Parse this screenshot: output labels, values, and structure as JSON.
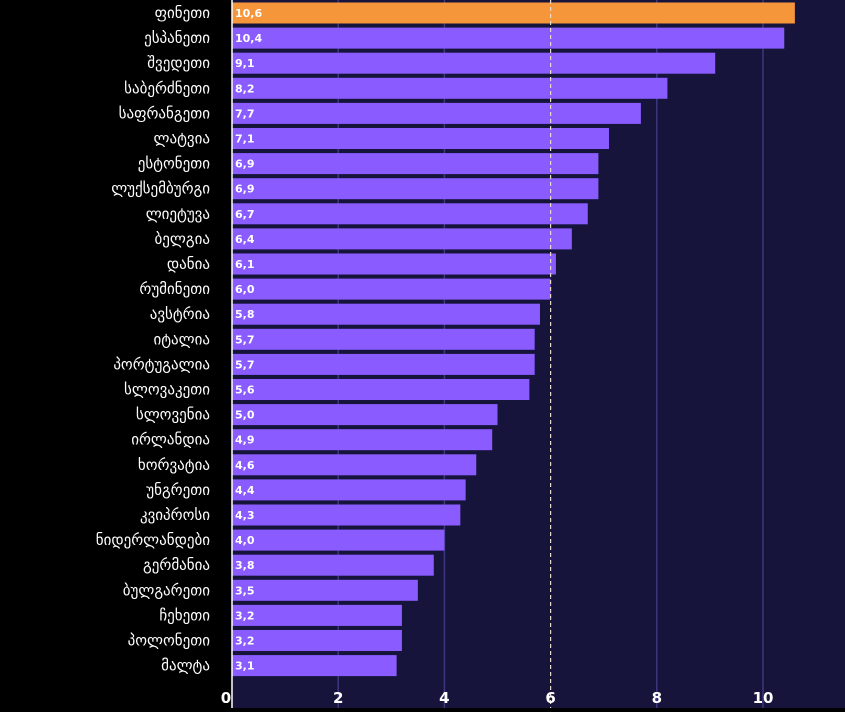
{
  "chart_data": {
    "type": "bar",
    "orientation": "horizontal",
    "categories": [
      "ფინეთი",
      "ესპანეთი",
      "შვედეთი",
      "საბერძნეთი",
      "საფრანგეთი",
      "ლატვია",
      "ესტონეთი",
      "ლუქსემბურგი",
      "ლიეტუვა",
      "ბელგია",
      "დანია",
      "რუმინეთი",
      "ავსტრია",
      "იტალია",
      "პორტუგალია",
      "სლოვაკეთი",
      "სლოვენია",
      "ირლანდია",
      "ხორვატია",
      "უნგრეთი",
      "კვიპროსი",
      "ნიდერლანდები",
      "გერმანია",
      "ბულგარეთი",
      "ჩეხეთი",
      "პოლონეთი",
      "მალტა"
    ],
    "values": [
      10.6,
      10.4,
      9.1,
      8.2,
      7.7,
      7.1,
      6.9,
      6.9,
      6.7,
      6.4,
      6.1,
      6.0,
      5.8,
      5.7,
      5.7,
      5.6,
      5.0,
      4.9,
      4.6,
      4.4,
      4.3,
      4.0,
      3.8,
      3.5,
      3.2,
      3.2,
      3.1
    ],
    "value_labels": [
      "10,6",
      "10,4",
      "9,1",
      "8,2",
      "7,7",
      "7,1",
      "6,9",
      "6,9",
      "6,7",
      "6,4",
      "6,1",
      "6,0",
      "5,8",
      "5,7",
      "5,7",
      "5,6",
      "5,0",
      "4,9",
      "4,6",
      "4,4",
      "4,3",
      "4,0",
      "3,8",
      "3,5",
      "3,2",
      "3,2",
      "3,1"
    ],
    "highlight_index": 0,
    "xticks": [
      0,
      2,
      4,
      6,
      8,
      10
    ],
    "xlim": [
      0,
      11
    ],
    "reference_line": 6,
    "title": "",
    "xlabel": "",
    "ylabel": "",
    "grid": true,
    "legend": "none"
  },
  "colors": {
    "background": "#000000",
    "plot_background": "#16143a",
    "bar": "#8a5cff",
    "highlight_bar": "#f5963a",
    "gridline": "#3c3780",
    "reference_line": "#e8d8c8",
    "text": "#ffffff"
  }
}
